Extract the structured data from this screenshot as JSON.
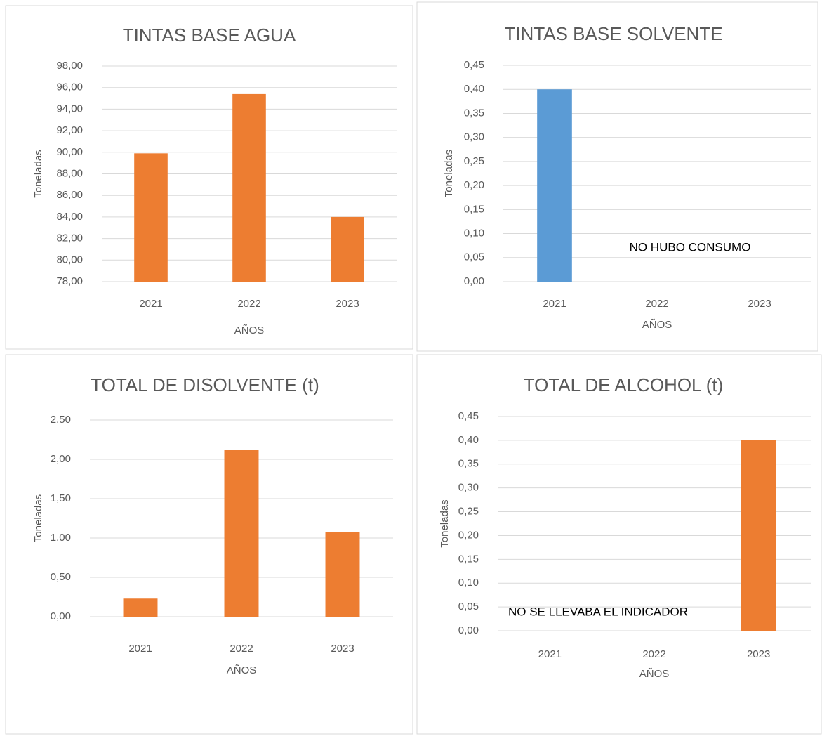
{
  "chart_data": [
    {
      "type": "bar",
      "title": "TINTAS BASE AGUA",
      "x_label": "AÑOS",
      "y_label": "Toneladas",
      "categories": [
        "2021",
        "2022",
        "2023"
      ],
      "values": [
        89.9,
        95.4,
        84.0
      ],
      "color": "#ed7d31",
      "ylim": [
        78,
        98
      ],
      "yticks": [
        {
          "value": 78,
          "label": "78,00"
        },
        {
          "value": 80,
          "label": "80,00"
        },
        {
          "value": 82,
          "label": "82,00"
        },
        {
          "value": 84,
          "label": "84,00"
        },
        {
          "value": 86,
          "label": "86,00"
        },
        {
          "value": 88,
          "label": "88,00"
        },
        {
          "value": 90,
          "label": "90,00"
        },
        {
          "value": 92,
          "label": "92,00"
        },
        {
          "value": 94,
          "label": "94,00"
        },
        {
          "value": 96,
          "label": "96,00"
        },
        {
          "value": 98,
          "label": "98,00"
        }
      ],
      "grid": true
    },
    {
      "type": "bar",
      "title": "TINTAS BASE SOLVENTE",
      "x_label": "AÑOS",
      "y_label": "Toneladas",
      "categories": [
        "2021",
        "2022",
        "2023"
      ],
      "values": [
        0.4,
        null,
        null
      ],
      "color": "#5b9bd5",
      "annotation": "NO HUBO CONSUMO",
      "ylim": [
        0,
        0.45
      ],
      "yticks": [
        {
          "value": 0,
          "label": "0,00"
        },
        {
          "value": 0.05,
          "label": "0,05"
        },
        {
          "value": 0.1,
          "label": "0,10"
        },
        {
          "value": 0.15,
          "label": "0,15"
        },
        {
          "value": 0.2,
          "label": "0,20"
        },
        {
          "value": 0.25,
          "label": "0,25"
        },
        {
          "value": 0.3,
          "label": "0,30"
        },
        {
          "value": 0.35,
          "label": "0,35"
        },
        {
          "value": 0.4,
          "label": "0,40"
        },
        {
          "value": 0.45,
          "label": "0,45"
        }
      ],
      "grid": true
    },
    {
      "type": "bar",
      "title": "TOTAL DE DISOLVENTE (t)",
      "x_label": "AÑOS",
      "y_label": "Toneladas",
      "categories": [
        "2021",
        "2022",
        "2023"
      ],
      "values": [
        0.23,
        2.12,
        1.08
      ],
      "color": "#ed7d31",
      "ylim": [
        0,
        2.5
      ],
      "yticks": [
        {
          "value": 0,
          "label": "0,00"
        },
        {
          "value": 0.5,
          "label": "0,50"
        },
        {
          "value": 1,
          "label": "1,00"
        },
        {
          "value": 1.5,
          "label": "1,50"
        },
        {
          "value": 2,
          "label": "2,00"
        },
        {
          "value": 2.5,
          "label": "2,50"
        }
      ],
      "grid": true
    },
    {
      "type": "bar",
      "title": "TOTAL DE ALCOHOL (t)",
      "x_label": "AÑOS",
      "y_label": "Toneladas",
      "categories": [
        "2021",
        "2022",
        "2023"
      ],
      "values": [
        null,
        null,
        0.4
      ],
      "color": "#ed7d31",
      "annotation": "NO SE LLEVABA EL INDICADOR",
      "ylim": [
        0,
        0.45
      ],
      "yticks": [
        {
          "value": 0,
          "label": "0,00"
        },
        {
          "value": 0.05,
          "label": "0,05"
        },
        {
          "value": 0.1,
          "label": "0,10"
        },
        {
          "value": 0.15,
          "label": "0,15"
        },
        {
          "value": 0.2,
          "label": "0,20"
        },
        {
          "value": 0.25,
          "label": "0,25"
        },
        {
          "value": 0.3,
          "label": "0,30"
        },
        {
          "value": 0.35,
          "label": "0,35"
        },
        {
          "value": 0.4,
          "label": "0,40"
        },
        {
          "value": 0.45,
          "label": "0,45"
        }
      ],
      "grid": true
    }
  ]
}
